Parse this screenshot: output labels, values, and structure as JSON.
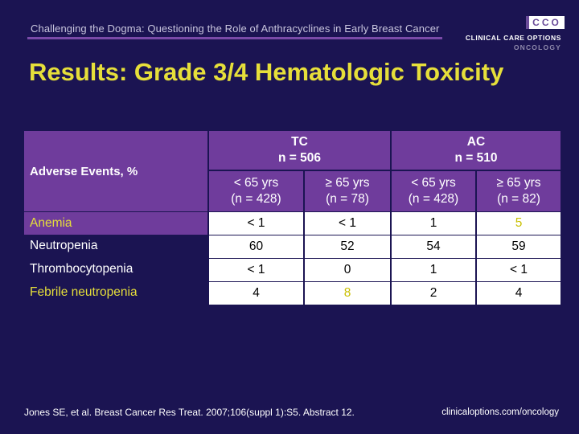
{
  "header": {
    "subtitle": "Challenging the Dogma: Questioning the Role of Anthracyclines in Early Breast Cancer"
  },
  "logo": {
    "mark": "CCO",
    "line1": "CLINICAL CARE OPTIONS",
    "line2": "ONCOLOGY"
  },
  "title": "Results: Grade 3/4 Hematologic Toxicity",
  "table": {
    "first_column_header": "Adverse Events, %",
    "groups": [
      {
        "name": "TC",
        "n": "n = 506"
      },
      {
        "name": "AC",
        "n": "n = 510"
      }
    ],
    "subheaders": [
      {
        "age": "< 65 yrs",
        "n": "(n = 428)"
      },
      {
        "age": "≥ 65 yrs",
        "n": "(n = 78)"
      },
      {
        "age": "< 65 yrs",
        "n": "(n = 428)"
      },
      {
        "age": "≥ 65 yrs",
        "n": "(n = 82)"
      }
    ],
    "rows": [
      {
        "label": "Anemia",
        "values": [
          "< 1",
          "< 1",
          "1",
          "5"
        ]
      },
      {
        "label": "Neutropenia",
        "values": [
          "60",
          "52",
          "54",
          "59"
        ]
      },
      {
        "label": "Thrombocytopenia",
        "values": [
          "< 1",
          "0",
          "1",
          "< 1"
        ]
      },
      {
        "label": "Febrile neutropenia",
        "values": [
          "4",
          "8",
          "2",
          "4"
        ]
      }
    ]
  },
  "footer": {
    "citation": "Jones SE, et al. Breast Cancer Res Treat. 2007;106(suppl 1):S5. Abstract 12.",
    "url": "clinicaloptions.com/oncology"
  },
  "colors": {
    "background": "#1b1452",
    "title": "#e6df3a",
    "table_header": "#6f3c9c",
    "accent_rule": "#7a4aa8"
  }
}
